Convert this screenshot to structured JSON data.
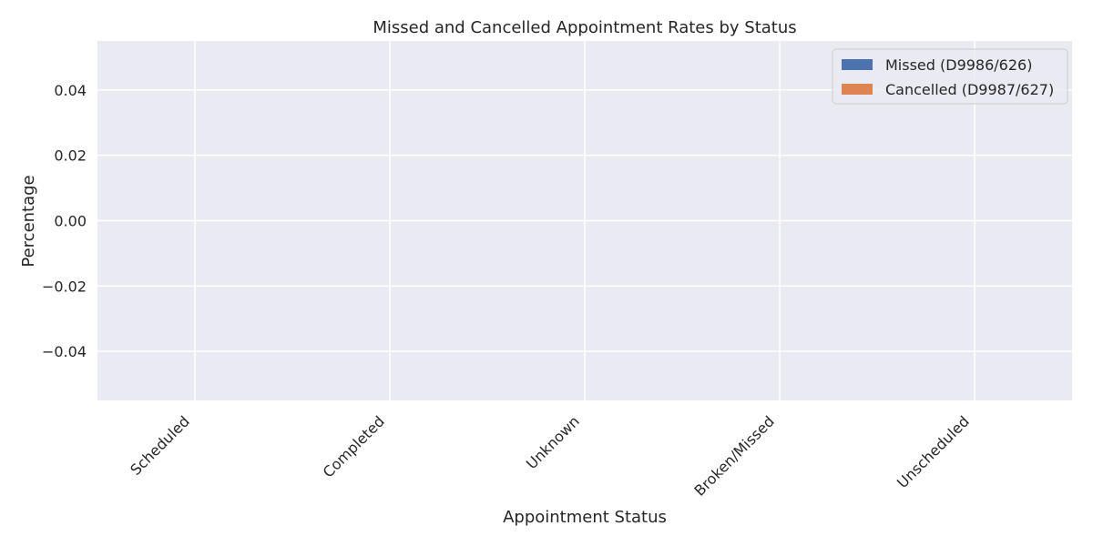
{
  "chart_data": {
    "type": "bar",
    "title": "Missed and Cancelled Appointment Rates by Status",
    "xlabel": "Appointment Status",
    "ylabel": "Percentage",
    "categories": [
      "Scheduled",
      "Completed",
      "Unknown",
      "Broken/Missed",
      "Unscheduled"
    ],
    "series": [
      {
        "name": "Missed (D9986/626)",
        "values": [
          0,
          0,
          0,
          0,
          0
        ],
        "color": "#4c72b0"
      },
      {
        "name": "Cancelled (D9987/627)",
        "values": [
          0,
          0,
          0,
          0,
          0
        ],
        "color": "#dd8452"
      }
    ],
    "ylim": [
      -0.055,
      0.055
    ],
    "yticks": [
      -0.04,
      -0.02,
      0.0,
      0.02,
      0.04
    ],
    "ytick_labels": [
      "−0.04",
      "−0.02",
      "0.00",
      "0.02",
      "0.04"
    ],
    "grid": true,
    "legend_position": "top-right",
    "background_color": "#eaeaf2",
    "grid_color": "#ffffff"
  }
}
